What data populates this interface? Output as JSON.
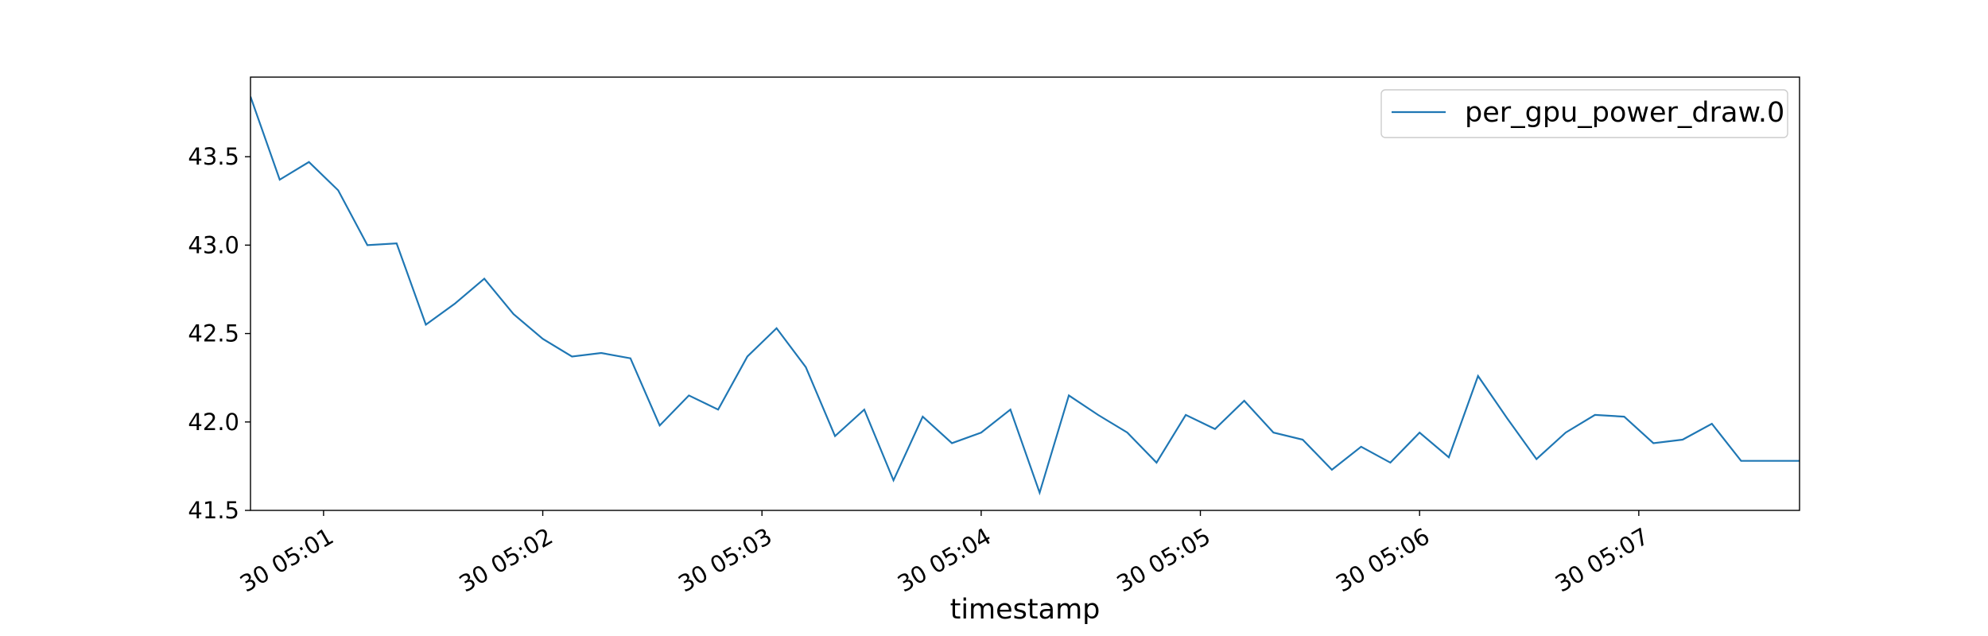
{
  "chart_data": {
    "type": "line",
    "xlabel": "timestamp",
    "ylabel": "",
    "ylim": [
      41.5,
      43.95
    ],
    "yticks": [
      41.5,
      42.0,
      42.5,
      43.0,
      43.5
    ],
    "ytick_labels": [
      "41.5",
      "42.0",
      "42.5",
      "43.0",
      "43.5"
    ],
    "xlim": [
      "05:00:40",
      "05:07:44"
    ],
    "xticks": [
      "05:01:00",
      "05:02:00",
      "05:03:00",
      "05:04:00",
      "05:05:00",
      "05:06:00",
      "05:07:00"
    ],
    "xtick_labels": [
      "30 05:01",
      "30 05:02",
      "30 05:03",
      "30 05:04",
      "30 05:05",
      "30 05:06",
      "30 05:07"
    ],
    "legend": {
      "placement": "top-right"
    },
    "grid": false,
    "series": [
      {
        "name": "per_gpu_power_draw.0",
        "color": "#1f77b4",
        "x": [
          "05:00:40",
          "05:00:48",
          "05:00:56",
          "05:01:04",
          "05:01:12",
          "05:01:20",
          "05:01:28",
          "05:01:36",
          "05:01:44",
          "05:01:52",
          "05:02:00",
          "05:02:08",
          "05:02:16",
          "05:02:24",
          "05:02:32",
          "05:02:40",
          "05:02:48",
          "05:02:56",
          "05:03:04",
          "05:03:12",
          "05:03:20",
          "05:03:28",
          "05:03:36",
          "05:03:44",
          "05:03:52",
          "05:04:00",
          "05:04:08",
          "05:04:16",
          "05:04:24",
          "05:04:32",
          "05:04:40",
          "05:04:48",
          "05:04:56",
          "05:05:04",
          "05:05:12",
          "05:05:20",
          "05:05:28",
          "05:05:36",
          "05:05:44",
          "05:05:52",
          "05:06:00",
          "05:06:08",
          "05:06:16",
          "05:06:24",
          "05:06:32",
          "05:06:40",
          "05:06:48",
          "05:06:56",
          "05:07:04",
          "05:07:12",
          "05:07:20",
          "05:07:28",
          "05:07:36",
          "05:07:44"
        ],
        "y": [
          43.84,
          43.37,
          43.47,
          43.31,
          43.0,
          43.01,
          42.55,
          42.67,
          42.81,
          42.61,
          42.47,
          42.37,
          42.39,
          42.36,
          41.98,
          42.15,
          42.07,
          42.37,
          42.53,
          42.31,
          41.92,
          42.07,
          41.67,
          42.03,
          41.88,
          41.94,
          42.07,
          41.6,
          42.15,
          42.04,
          41.94,
          41.77,
          42.04,
          41.96,
          42.12,
          41.94,
          41.9,
          41.73,
          41.86,
          41.77,
          41.94,
          41.8,
          42.26,
          42.02,
          41.79,
          41.94,
          42.04,
          42.03,
          41.88,
          41.9,
          41.99,
          41.78,
          41.78,
          41.78
        ]
      }
    ]
  }
}
